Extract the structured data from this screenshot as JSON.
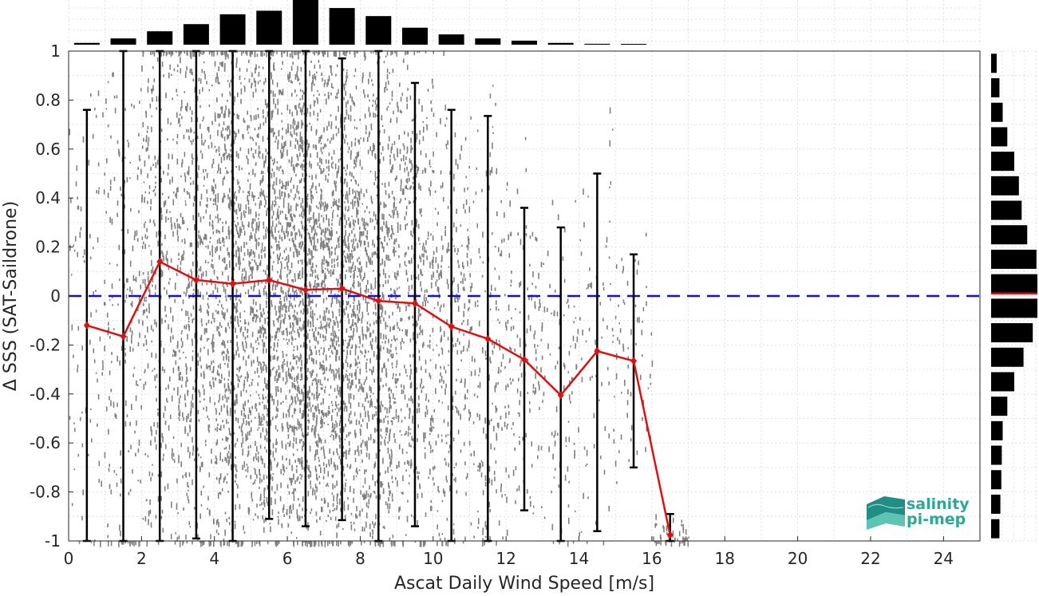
{
  "chart_data": {
    "type": "scatter",
    "xlabel": "Ascat Daily Wind Speed [m/s]",
    "ylabel": "Δ SSS (SAT-Saildrone)",
    "xlim": [
      0,
      25
    ],
    "ylim": [
      -1,
      1
    ],
    "xticks": [
      0,
      2,
      4,
      6,
      8,
      10,
      12,
      14,
      16,
      18,
      20,
      22,
      24
    ],
    "yticks": [
      -1,
      -0.8,
      -0.6,
      -0.4,
      -0.2,
      0,
      0.2,
      0.4,
      0.6,
      0.8,
      1
    ],
    "ytick_labels": [
      "-1",
      "-0.8",
      "-0.6",
      "-0.4",
      "-0.2",
      "0",
      "0.2",
      "0.4",
      "0.6",
      "0.8",
      "1"
    ],
    "grid": true,
    "reference_line": {
      "y": 0,
      "style": "dashed",
      "color": "#1010dd"
    },
    "scatter_color": "#808080",
    "mean_color": "#dd1111",
    "errorbar_color": "#000000",
    "series": [
      {
        "x": [
          0.5,
          1.5,
          2.5,
          3.5,
          4.5,
          5.5,
          6.5,
          7.5,
          8.5,
          9.5,
          10.5,
          11.5,
          12.5,
          13.5,
          14.5,
          15.5,
          16.5
        ],
        "values": [
          -0.12,
          -0.165,
          0.14,
          0.065,
          0.05,
          0.065,
          0.025,
          0.03,
          -0.02,
          -0.03,
          -0.125,
          -0.175,
          -0.26,
          -0.405,
          -0.225,
          -0.265,
          -0.975
        ],
        "err_upper": [
          0.76,
          1.0,
          1.0,
          1.0,
          1.0,
          1.0,
          1.0,
          0.97,
          1.0,
          0.87,
          0.76,
          0.735,
          0.36,
          0.28,
          0.5,
          0.17,
          -0.89
        ],
        "err_lower": [
          -1.0,
          -1.0,
          -1.0,
          -0.99,
          -1.0,
          -0.91,
          -0.94,
          -0.915,
          -1.0,
          -0.94,
          -1.0,
          -1.0,
          -0.875,
          -1.0,
          -0.96,
          -0.7,
          -1.0
        ]
      }
    ],
    "top_histogram": {
      "bin_centers": [
        0.5,
        1.5,
        2.5,
        3.5,
        4.5,
        5.5,
        6.5,
        7.5,
        8.5,
        9.5,
        10.5,
        11.5,
        12.5,
        13.5,
        14.5,
        15.5
      ],
      "relative_counts": [
        0.04,
        0.14,
        0.3,
        0.46,
        0.68,
        0.76,
        1.0,
        0.82,
        0.64,
        0.38,
        0.23,
        0.14,
        0.09,
        0.04,
        0.02,
        0.01
      ]
    },
    "right_histogram": {
      "bin_centers": [
        -0.95,
        -0.85,
        -0.75,
        -0.65,
        -0.55,
        -0.45,
        -0.35,
        -0.25,
        -0.15,
        -0.05,
        0.05,
        0.15,
        0.25,
        0.35,
        0.45,
        0.55,
        0.65,
        0.75,
        0.85,
        0.95
      ],
      "relative_counts": [
        0.18,
        0.2,
        0.22,
        0.23,
        0.25,
        0.35,
        0.5,
        0.7,
        0.9,
        1.0,
        1.0,
        0.98,
        0.78,
        0.66,
        0.6,
        0.5,
        0.35,
        0.25,
        0.18,
        0.12
      ],
      "median_marker": 0.01
    }
  },
  "logo": {
    "line1": "salinity",
    "line2": "pi-mep"
  }
}
